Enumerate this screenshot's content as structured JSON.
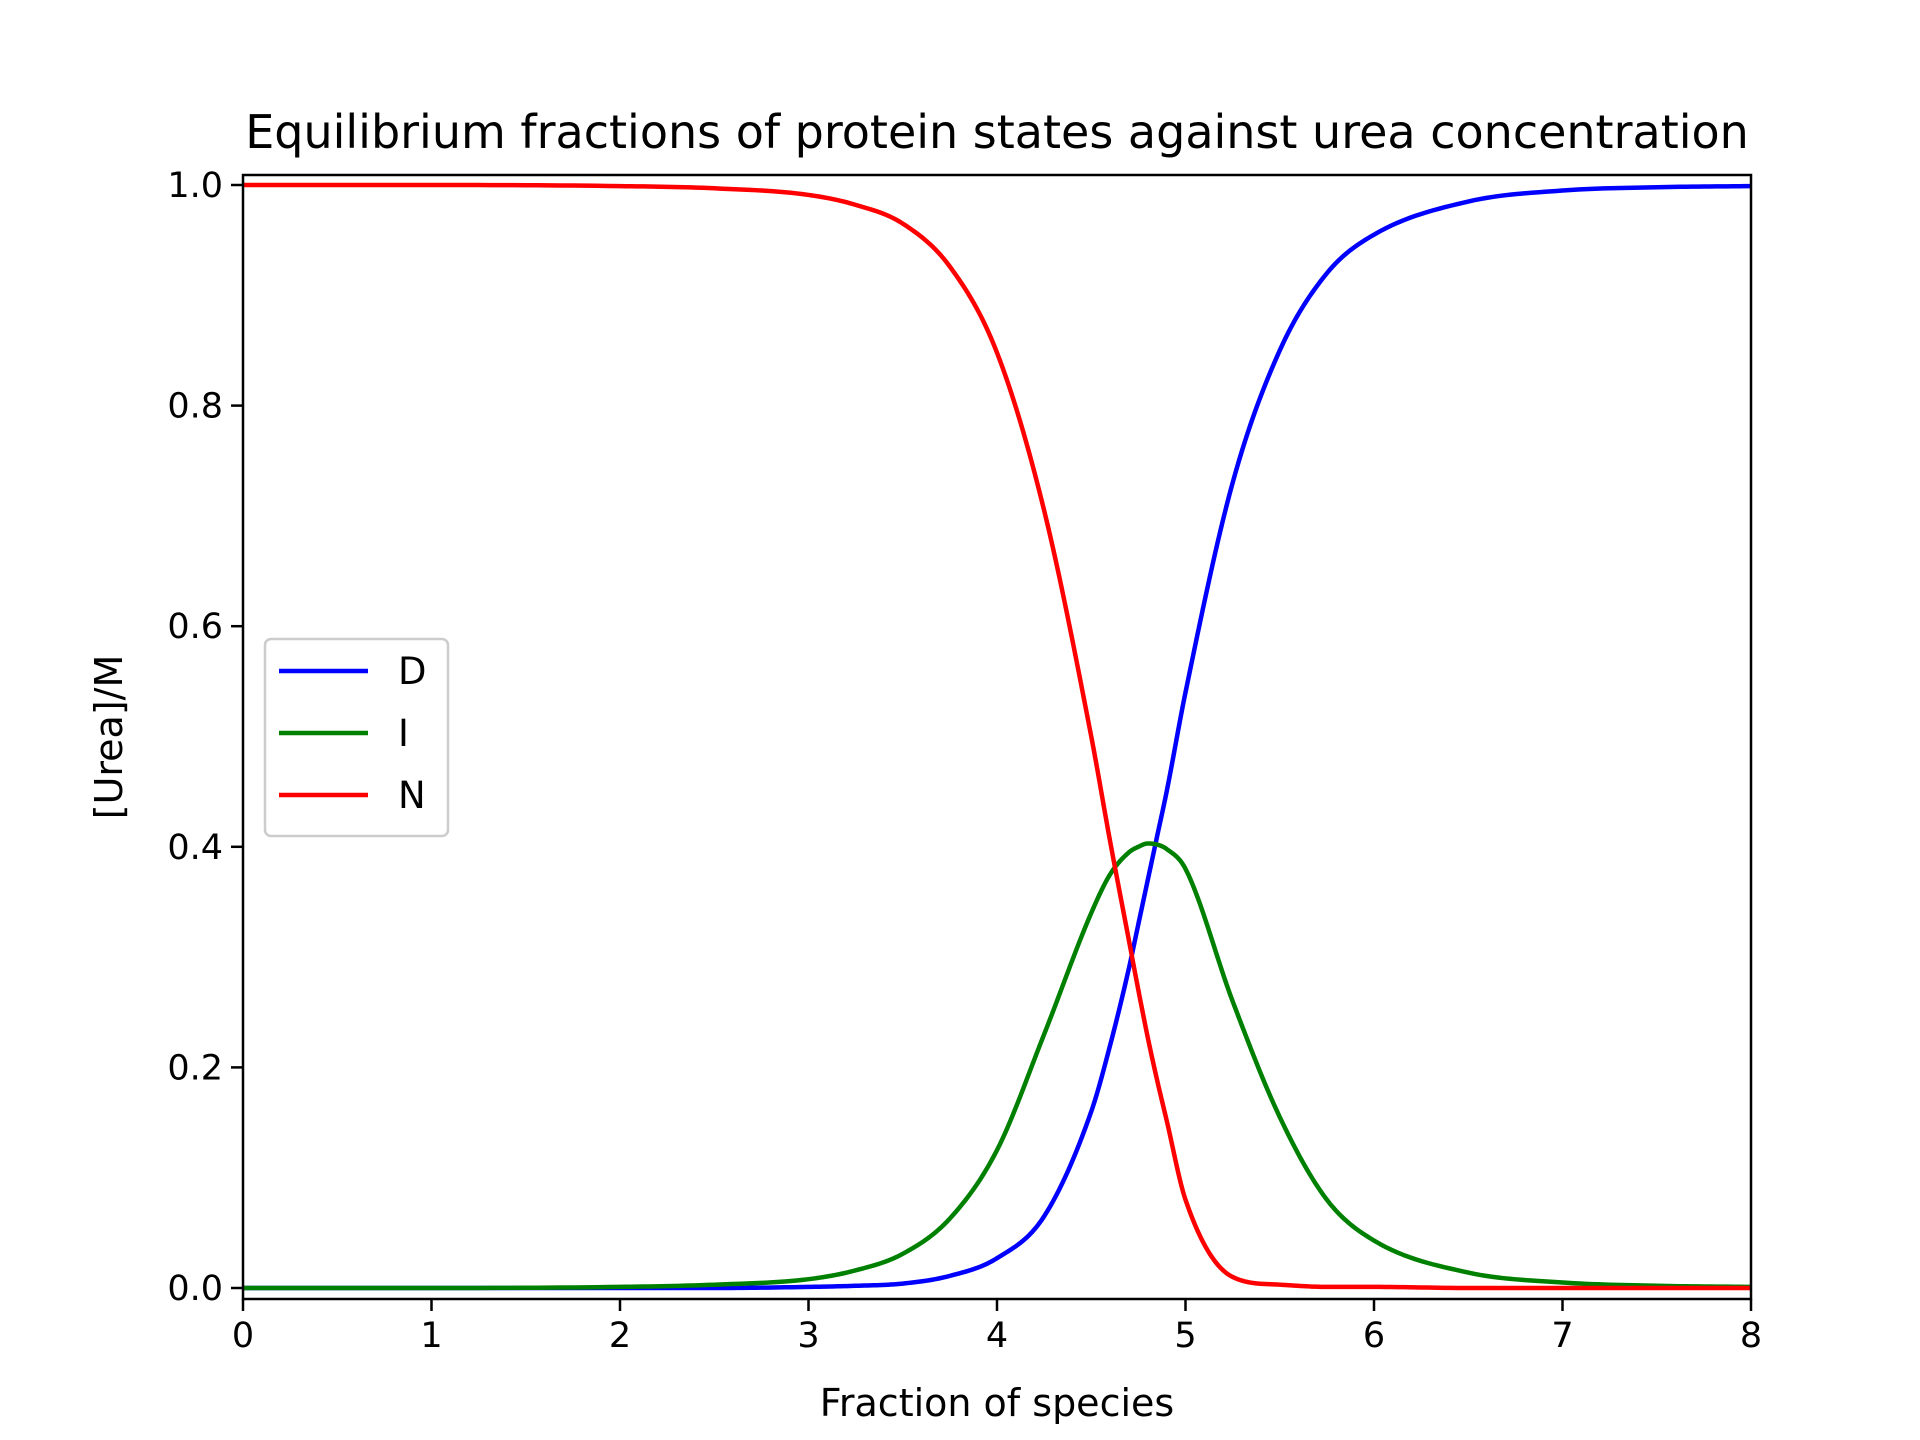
{
  "chart_data": {
    "type": "line",
    "title": "Equilibrium fractions of protein states against urea concentration",
    "xlabel": "Fraction of species",
    "ylabel": "[Urea]/M",
    "xlim": [
      0,
      8
    ],
    "ylim": [
      0,
      1.0
    ],
    "xticks": [
      "0",
      "1",
      "2",
      "3",
      "4",
      "5",
      "6",
      "7",
      "8"
    ],
    "yticks": [
      "0.0",
      "0.2",
      "0.4",
      "0.6",
      "0.8",
      "1.0"
    ],
    "grid": false,
    "legend_position": "center-left",
    "x": [
      0,
      1,
      2,
      2.5,
      3,
      3.25,
      3.5,
      3.75,
      4,
      4.25,
      4.5,
      4.6,
      4.7,
      4.75,
      4.8,
      4.85,
      4.9,
      5,
      5.25,
      5.5,
      5.75,
      6,
      6.5,
      7,
      7.5,
      8
    ],
    "series": [
      {
        "name": "D",
        "color": "#0000ff",
        "values": [
          0,
          0,
          0,
          0,
          0.001,
          0.002,
          0.004,
          0.011,
          0.027,
          0.065,
          0.16,
          0.22,
          0.29,
          0.33,
          0.37,
          0.41,
          0.45,
          0.54,
          0.73,
          0.85,
          0.92,
          0.955,
          0.985,
          0.995,
          0.998,
          0.999
        ]
      },
      {
        "name": "I",
        "color": "#008000",
        "values": [
          0,
          0,
          0.001,
          0.003,
          0.008,
          0.016,
          0.031,
          0.063,
          0.125,
          0.23,
          0.34,
          0.375,
          0.395,
          0.4,
          0.403,
          0.402,
          0.398,
          0.38,
          0.26,
          0.155,
          0.08,
          0.043,
          0.014,
          0.005,
          0.002,
          0.001
        ]
      },
      {
        "name": "N",
        "color": "#ff0000",
        "values": [
          1.0,
          1.0,
          0.999,
          0.997,
          0.991,
          0.982,
          0.965,
          0.926,
          0.848,
          0.705,
          0.5,
          0.405,
          0.315,
          0.27,
          0.227,
          0.188,
          0.152,
          0.08,
          0.01,
          0.003,
          0.001,
          0.001,
          0,
          0,
          0,
          0
        ]
      }
    ]
  }
}
